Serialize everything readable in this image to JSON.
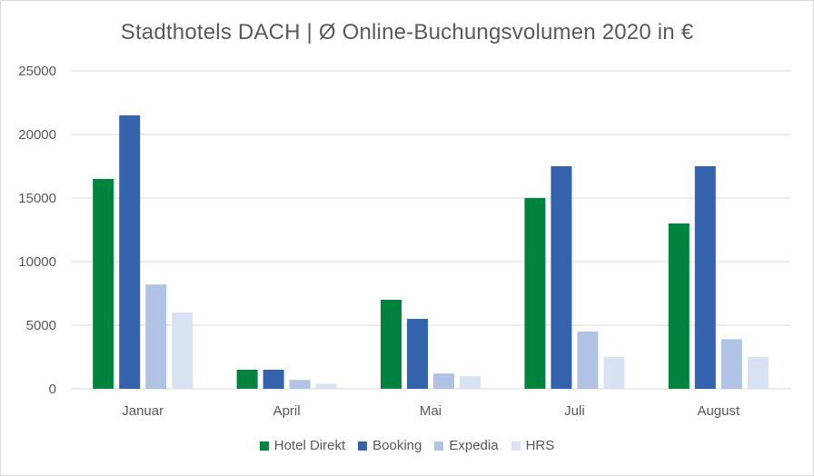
{
  "chart_data": {
    "type": "bar",
    "title": "Stadthotels DACH | Ø Online-Buchungsvolumen  2020 in €",
    "categories": [
      "Januar",
      "April",
      "Mai",
      "Juli",
      "August"
    ],
    "series": [
      {
        "name": "Hotel Direkt",
        "color": "#00843d",
        "values": [
          16500,
          1500,
          7000,
          15000,
          13000
        ]
      },
      {
        "name": "Booking",
        "color": "#3462ac",
        "values": [
          21500,
          1500,
          5500,
          17500,
          17500
        ]
      },
      {
        "name": "Expedia",
        "color": "#b0c3e4",
        "values": [
          8200,
          700,
          1200,
          4500,
          3900
        ]
      },
      {
        "name": "HRS",
        "color": "#d9e2f3",
        "values": [
          6000,
          400,
          1000,
          2500,
          2500
        ]
      }
    ],
    "yticks": [
      "0",
      "5000",
      "10000",
      "15000",
      "20000",
      "25000"
    ],
    "ylim": [
      0,
      25000
    ],
    "grid": true,
    "legend_position": "bottom",
    "gridline_color": "#d9d9d9"
  }
}
